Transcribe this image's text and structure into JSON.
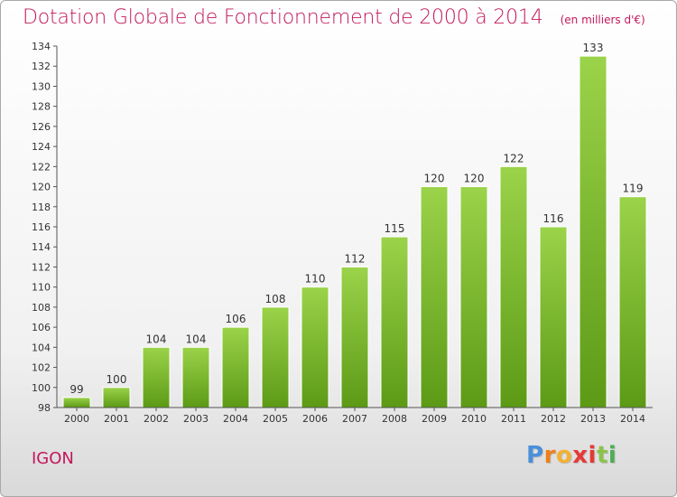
{
  "header": {
    "title": "Dotation Globale de Fonctionnement de 2000 à 2014",
    "unit_note": "(en milliers d'€)"
  },
  "footer": {
    "place": "IGON",
    "brand_letters": [
      "P",
      "r",
      "o",
      "x",
      "i",
      "t",
      "i"
    ],
    "brand_colors": [
      "#4a90d9",
      "#ef7f1a",
      "#f2b134",
      "#e53935",
      "#e53935",
      "#8bc34a",
      "#4caf50"
    ]
  },
  "colors": {
    "bar_light": "#9bd34a",
    "bar_dark": "#5c9a16",
    "axis": "#555555",
    "label": "#333333",
    "title": "#c2185b"
  },
  "chart_data": {
    "type": "bar",
    "categories": [
      "2000",
      "2001",
      "2002",
      "2003",
      "2004",
      "2005",
      "2006",
      "2007",
      "2008",
      "2009",
      "2010",
      "2011",
      "2012",
      "2013",
      "2014"
    ],
    "values": [
      99,
      100,
      104,
      104,
      106,
      108,
      110,
      112,
      115,
      120,
      120,
      122,
      116,
      133,
      119
    ],
    "data_labels": [
      "99",
      "100",
      "104",
      "104",
      "106",
      "108",
      "110",
      "112",
      "115",
      "120",
      "120",
      "122",
      "116",
      "133",
      "119"
    ],
    "ylim": [
      98,
      134
    ],
    "yticks": [
      98,
      100,
      102,
      104,
      106,
      108,
      110,
      112,
      114,
      116,
      118,
      120,
      122,
      124,
      126,
      128,
      130,
      132,
      134
    ],
    "xlabel": "",
    "ylabel": "",
    "grid": false,
    "legend": "none"
  }
}
